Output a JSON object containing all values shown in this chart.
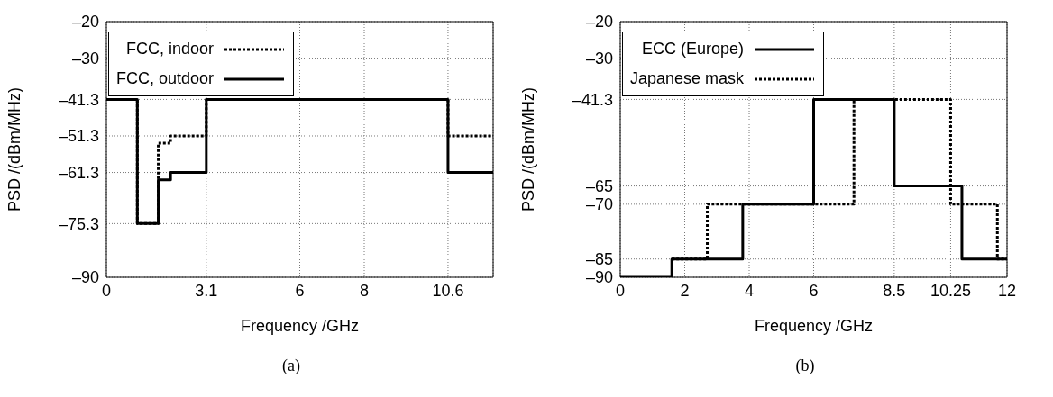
{
  "chart_data": [
    {
      "type": "step",
      "xlabel": "Frequency /GHz",
      "ylabel": "PSD /(dBm/MHz)",
      "annotations": [
        "(a)"
      ],
      "xlim": [
        0,
        12
      ],
      "xticks": [
        0,
        3.1,
        6,
        8,
        10.6
      ],
      "ylim": [
        -90,
        -20
      ],
      "yticks": [
        {
          "value": -90,
          "label": "–90"
        },
        {
          "value": -75.3,
          "label": "–75.3"
        },
        {
          "value": -61.3,
          "label": "–61.3"
        },
        {
          "value": -51.3,
          "label": "–51.3"
        },
        {
          "value": -41.3,
          "label": "–41.3"
        },
        {
          "value": -30,
          "label": "–30"
        },
        {
          "value": -20,
          "label": "–20"
        }
      ],
      "grid": true,
      "legend": "top left",
      "series": [
        {
          "name": "FCC, indoor",
          "color": "#000000",
          "line_style": "dotted",
          "x": [
            0,
            0.96,
            1.61,
            1.99,
            3.1,
            10.6,
            12
          ],
          "values": [
            -41.3,
            -75.3,
            -53.3,
            -51.3,
            -41.3,
            -51.3,
            -51.3
          ]
        },
        {
          "name": "FCC, outdoor",
          "color": "#000000",
          "line_style": "solid",
          "x": [
            0,
            0.96,
            1.61,
            1.99,
            3.1,
            10.6,
            12
          ],
          "values": [
            -41.3,
            -75.3,
            -63.3,
            -61.3,
            -41.3,
            -61.3,
            -61.3
          ]
        }
      ]
    },
    {
      "type": "step",
      "xlabel": "Frequency /GHz",
      "ylabel": "PSD /(dBm/MHz)",
      "annotations": [
        "(b)"
      ],
      "xlim": [
        0,
        12
      ],
      "xticks": [
        0,
        2,
        4,
        6,
        8.5,
        10.25,
        12
      ],
      "ylim": [
        -90,
        -20
      ],
      "yticks": [
        {
          "value": -90,
          "label": "–90"
        },
        {
          "value": -85,
          "label": "–85"
        },
        {
          "value": -70,
          "label": "–70"
        },
        {
          "value": -65,
          "label": "–65"
        },
        {
          "value": -41.3,
          "label": "–41.3"
        },
        {
          "value": -30,
          "label": "–30"
        },
        {
          "value": -20,
          "label": "–20"
        }
      ],
      "grid": true,
      "legend": "top left",
      "series": [
        {
          "name": "ECC (Europe)",
          "color": "#000000",
          "line_style": "solid",
          "x": [
            0,
            1.6,
            3.8,
            6,
            8.5,
            10.6,
            12
          ],
          "values": [
            -90,
            -85,
            -70,
            -41.3,
            -65,
            -85,
            -85
          ]
        },
        {
          "name": "Japanese mask",
          "color": "#000000",
          "line_style": "dotted",
          "x": [
            1.6,
            2.7,
            7.25,
            10.25,
            11.7,
            12
          ],
          "values": [
            -85,
            -70,
            -41.3,
            -70,
            -85,
            -85
          ]
        }
      ]
    }
  ]
}
